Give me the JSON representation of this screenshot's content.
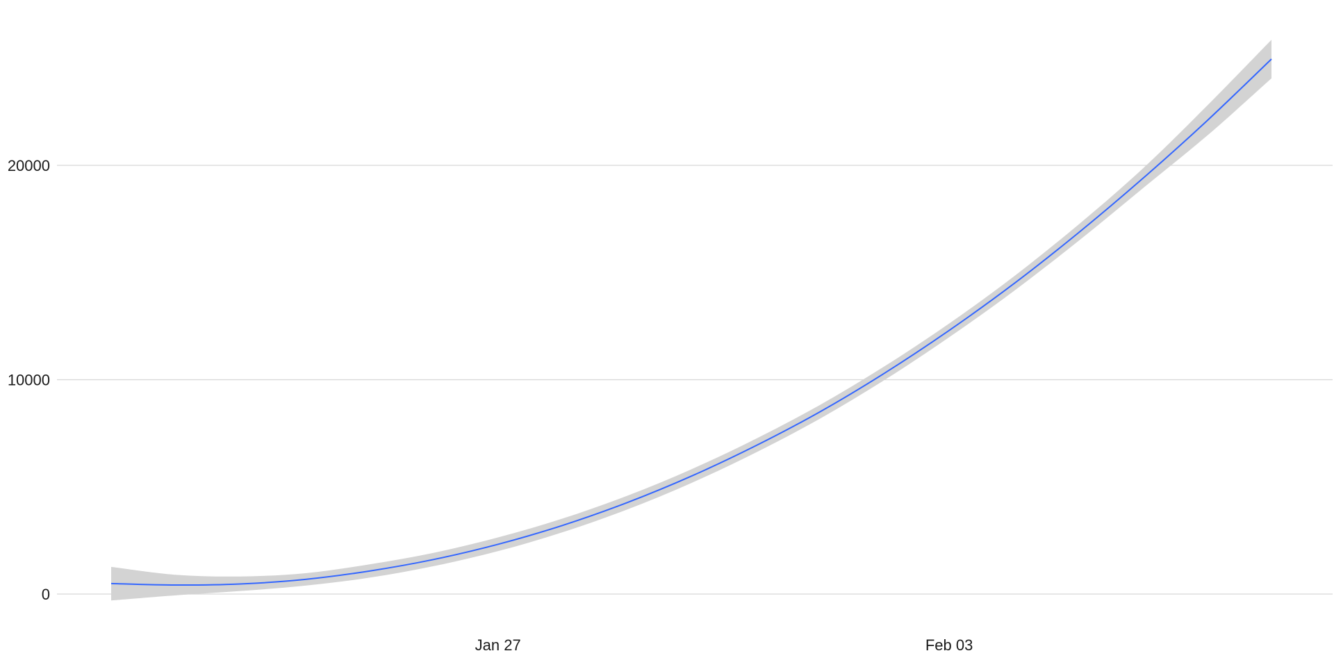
{
  "chart_data": {
    "type": "line",
    "title": "",
    "xlabel": "",
    "ylabel": "",
    "x_axis": {
      "type": "date",
      "range": [
        "2020-01-21",
        "2020-02-07"
      ],
      "ticks": [
        {
          "value": "2020-01-27",
          "label": "Jan 27"
        },
        {
          "value": "2020-02-03",
          "label": "Feb 03"
        }
      ]
    },
    "y_axis": {
      "range": [
        -1800,
        27000
      ],
      "ticks": [
        {
          "value": 0,
          "label": "0"
        },
        {
          "value": 10000,
          "label": "10000"
        },
        {
          "value": 20000,
          "label": "20000"
        }
      ]
    },
    "grid": {
      "horizontal": true,
      "vertical": false
    },
    "series": [
      {
        "style": "smoothed line with confidence band",
        "color": "#3366FF",
        "band_color": "#d3d3d3",
        "points": [
          {
            "x": "2020-01-21",
            "y": 490,
            "low": -300,
            "high": 1270
          },
          {
            "x": "2020-01-22",
            "y": 420,
            "low": -60,
            "high": 900
          },
          {
            "x": "2020-01-23",
            "y": 470,
            "low": 140,
            "high": 820
          },
          {
            "x": "2020-01-24",
            "y": 680,
            "low": 390,
            "high": 970
          },
          {
            "x": "2020-01-25",
            "y": 1070,
            "low": 760,
            "high": 1380
          },
          {
            "x": "2020-01-26",
            "y": 1610,
            "low": 1300,
            "high": 1920
          },
          {
            "x": "2020-01-27",
            "y": 2320,
            "low": 2000,
            "high": 2640
          },
          {
            "x": "2020-01-28",
            "y": 3200,
            "low": 2880,
            "high": 3520
          },
          {
            "x": "2020-01-29",
            "y": 4260,
            "low": 3940,
            "high": 4580
          },
          {
            "x": "2020-01-30",
            "y": 5500,
            "low": 5180,
            "high": 5820
          },
          {
            "x": "2020-01-31",
            "y": 6920,
            "low": 6600,
            "high": 7240
          },
          {
            "x": "2020-02-01",
            "y": 8510,
            "low": 8190,
            "high": 8830
          },
          {
            "x": "2020-02-02",
            "y": 10310,
            "low": 9990,
            "high": 10630
          },
          {
            "x": "2020-02-03",
            "y": 12300,
            "low": 11980,
            "high": 12620
          },
          {
            "x": "2020-02-04",
            "y": 14470,
            "low": 14130,
            "high": 14810
          },
          {
            "x": "2020-02-05",
            "y": 16840,
            "low": 16460,
            "high": 17220
          },
          {
            "x": "2020-02-06",
            "y": 19380,
            "low": 18920,
            "high": 19840
          },
          {
            "x": "2020-02-07",
            "y": 22080,
            "low": 21380,
            "high": 22780
          },
          {
            "x": "2020-02-08",
            "y": 24960,
            "low": 24060,
            "high": 25860
          }
        ]
      }
    ]
  }
}
